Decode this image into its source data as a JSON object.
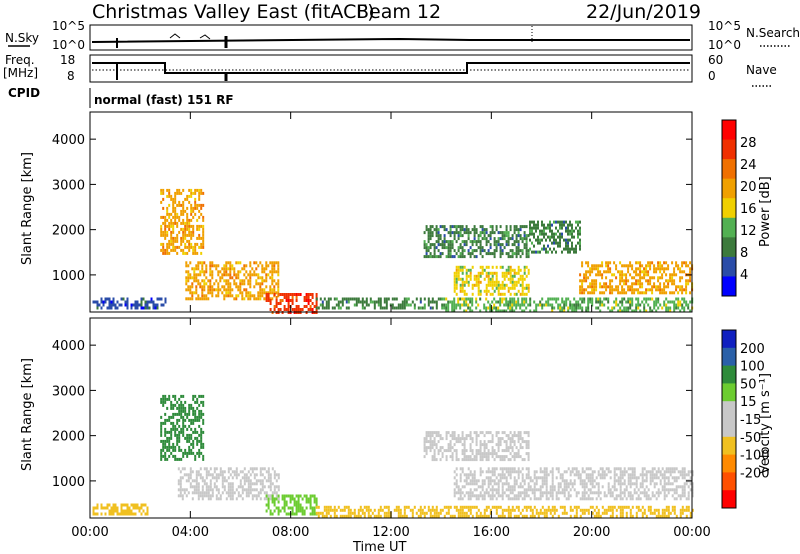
{
  "header": {
    "radar": "Christmas Valley East (fitACF)",
    "beam": "Beam 12",
    "date": "22/Jun/2019"
  },
  "top_panels": {
    "nsky_label": "N.Sky",
    "nsearch_label": "N.Search",
    "nsky_ticks": [
      "10^5",
      "10^0"
    ],
    "freq_label_1": "Freq.",
    "freq_label_2": "[MHz]",
    "freq_ticks": [
      "18",
      "8"
    ],
    "nave_label": "Nave",
    "nave_ticks": [
      "60",
      "0"
    ],
    "cpid_label": "CPID",
    "cpid_text": "normal (fast) 151 RF"
  },
  "colors": {
    "power_scale": [
      "#0000ff",
      "#2a4ca8",
      "#3c7a3c",
      "#52b052",
      "#f0d000",
      "#f0a000",
      "#f07000",
      "#f03000",
      "#ff0000"
    ],
    "velocity_scale": [
      "#ff0000",
      "#ff5000",
      "#ff8a00",
      "#f0c020",
      "#c8c8c8",
      "#c8c8c8",
      "#6ccc30",
      "#2e8b3a",
      "#2a60a8",
      "#1020c0"
    ]
  },
  "chart_data": [
    {
      "type": "heatmap",
      "name": "power",
      "ylabel": "Slant Range [km]",
      "yticks": [
        "4000",
        "3000",
        "2000",
        "1000"
      ],
      "ytick_values": [
        4000,
        3000,
        2000,
        1000
      ],
      "ylim": [
        180,
        4600
      ],
      "colorbar_label": "Power [dB]",
      "colorbar_ticks": [
        "28",
        "24",
        "20",
        "16",
        "12",
        "8",
        "4"
      ],
      "colorbar_range": [
        0,
        32
      ],
      "regions": [
        {
          "x": [
            0.1,
            3.0
          ],
          "y": [
            300,
            500
          ],
          "level": 6
        },
        {
          "x": [
            2.8,
            4.5
          ],
          "y": [
            1500,
            2900
          ],
          "level": 18
        },
        {
          "x": [
            3.8,
            7.5
          ],
          "y": [
            500,
            1300
          ],
          "level": 20
        },
        {
          "x": [
            7.0,
            9.0
          ],
          "y": [
            200,
            600
          ],
          "level": 28
        },
        {
          "x": [
            9.0,
            14.0
          ],
          "y": [
            250,
            500
          ],
          "level": 10
        },
        {
          "x": [
            13.3,
            17.5
          ],
          "y": [
            1400,
            2100
          ],
          "level": 10
        },
        {
          "x": [
            14.5,
            17.5
          ],
          "y": [
            600,
            1200
          ],
          "level": 16
        },
        {
          "x": [
            17.5,
            19.5
          ],
          "y": [
            1500,
            2200
          ],
          "level": 8
        },
        {
          "x": [
            19.5,
            24.0
          ],
          "y": [
            600,
            1300
          ],
          "level": 20
        },
        {
          "x": [
            14.0,
            24.0
          ],
          "y": [
            200,
            500
          ],
          "level": 14
        }
      ]
    },
    {
      "type": "heatmap",
      "name": "velocity",
      "ylabel": "Slant Range [km]",
      "yticks": [
        "4000",
        "3000",
        "2000",
        "1000"
      ],
      "ytick_values": [
        4000,
        3000,
        2000,
        1000
      ],
      "ylim": [
        180,
        4600
      ],
      "colorbar_label": "Velocity [m s⁻¹]",
      "colorbar_ticks": [
        "200",
        "100",
        "50",
        "15",
        "-15",
        "-50",
        "-100",
        "-200"
      ],
      "xlabel": "Time UT",
      "xticks": [
        "00:00",
        "04:00",
        "08:00",
        "12:00",
        "16:00",
        "20:00",
        "00:00"
      ],
      "xlim": [
        0,
        24
      ],
      "regions": [
        {
          "x": [
            0.1,
            2.3
          ],
          "y": [
            300,
            500
          ],
          "velocity": -40
        },
        {
          "x": [
            2.8,
            4.5
          ],
          "y": [
            1500,
            2900
          ],
          "velocity": 60
        },
        {
          "x": [
            3.5,
            7.5
          ],
          "y": [
            600,
            1300
          ],
          "velocity": 0
        },
        {
          "x": [
            7.0,
            9.0
          ],
          "y": [
            250,
            700
          ],
          "velocity": 40
        },
        {
          "x": [
            9.0,
            24.0
          ],
          "y": [
            200,
            450
          ],
          "velocity": -40
        },
        {
          "x": [
            13.3,
            17.5
          ],
          "y": [
            1500,
            2100
          ],
          "velocity": 0
        },
        {
          "x": [
            14.5,
            24.0
          ],
          "y": [
            600,
            1300
          ],
          "velocity": 0
        }
      ]
    }
  ]
}
